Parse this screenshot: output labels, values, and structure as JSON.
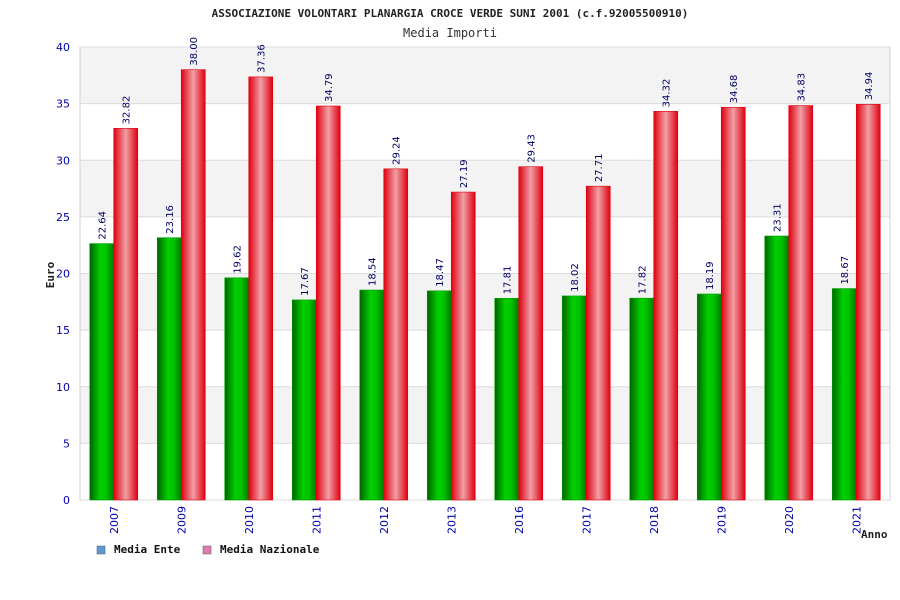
{
  "chart_data": {
    "type": "bar",
    "title": "ASSOCIAZIONE VOLONTARI PLANARGIA CROCE VERDE SUNI 2001 (c.f.92005500910)",
    "subtitle": "Media Importi",
    "ylabel": "Euro",
    "xlabel": "Anno",
    "ylim": [
      0,
      40
    ],
    "yticks": [
      "0",
      "5",
      "10",
      "15",
      "20",
      "25",
      "30",
      "35",
      "40"
    ],
    "categories": [
      "2007",
      "2009",
      "2010",
      "2011",
      "2012",
      "2013",
      "2016",
      "2017",
      "2018",
      "2019",
      "2020",
      "2021"
    ],
    "series": [
      {
        "name": "Media Ente",
        "values": [
          22.64,
          23.16,
          19.62,
          17.67,
          18.54,
          18.47,
          17.81,
          18.02,
          17.82,
          18.19,
          23.31,
          18.67
        ],
        "labels": [
          "22.64",
          "23.16",
          "19.62",
          "17.67",
          "18.54",
          "18.47",
          "17.81",
          "18.02",
          "17.82",
          "18.19",
          "23.31",
          "18.67"
        ],
        "color": "#00b000",
        "legend_color": "#5b9bd5"
      },
      {
        "name": "Media Nazionale",
        "values": [
          32.82,
          38.0,
          37.36,
          34.79,
          29.24,
          27.19,
          29.43,
          27.71,
          34.32,
          34.68,
          34.83,
          34.94
        ],
        "labels": [
          "32.82",
          "38.00",
          "37.36",
          "34.79",
          "29.24",
          "27.19",
          "29.43",
          "27.71",
          "34.32",
          "34.68",
          "34.83",
          "34.94"
        ],
        "color": "#e8101c",
        "legend_color": "#e07bb4"
      }
    ],
    "grid": true,
    "legend": "bottom-left"
  }
}
